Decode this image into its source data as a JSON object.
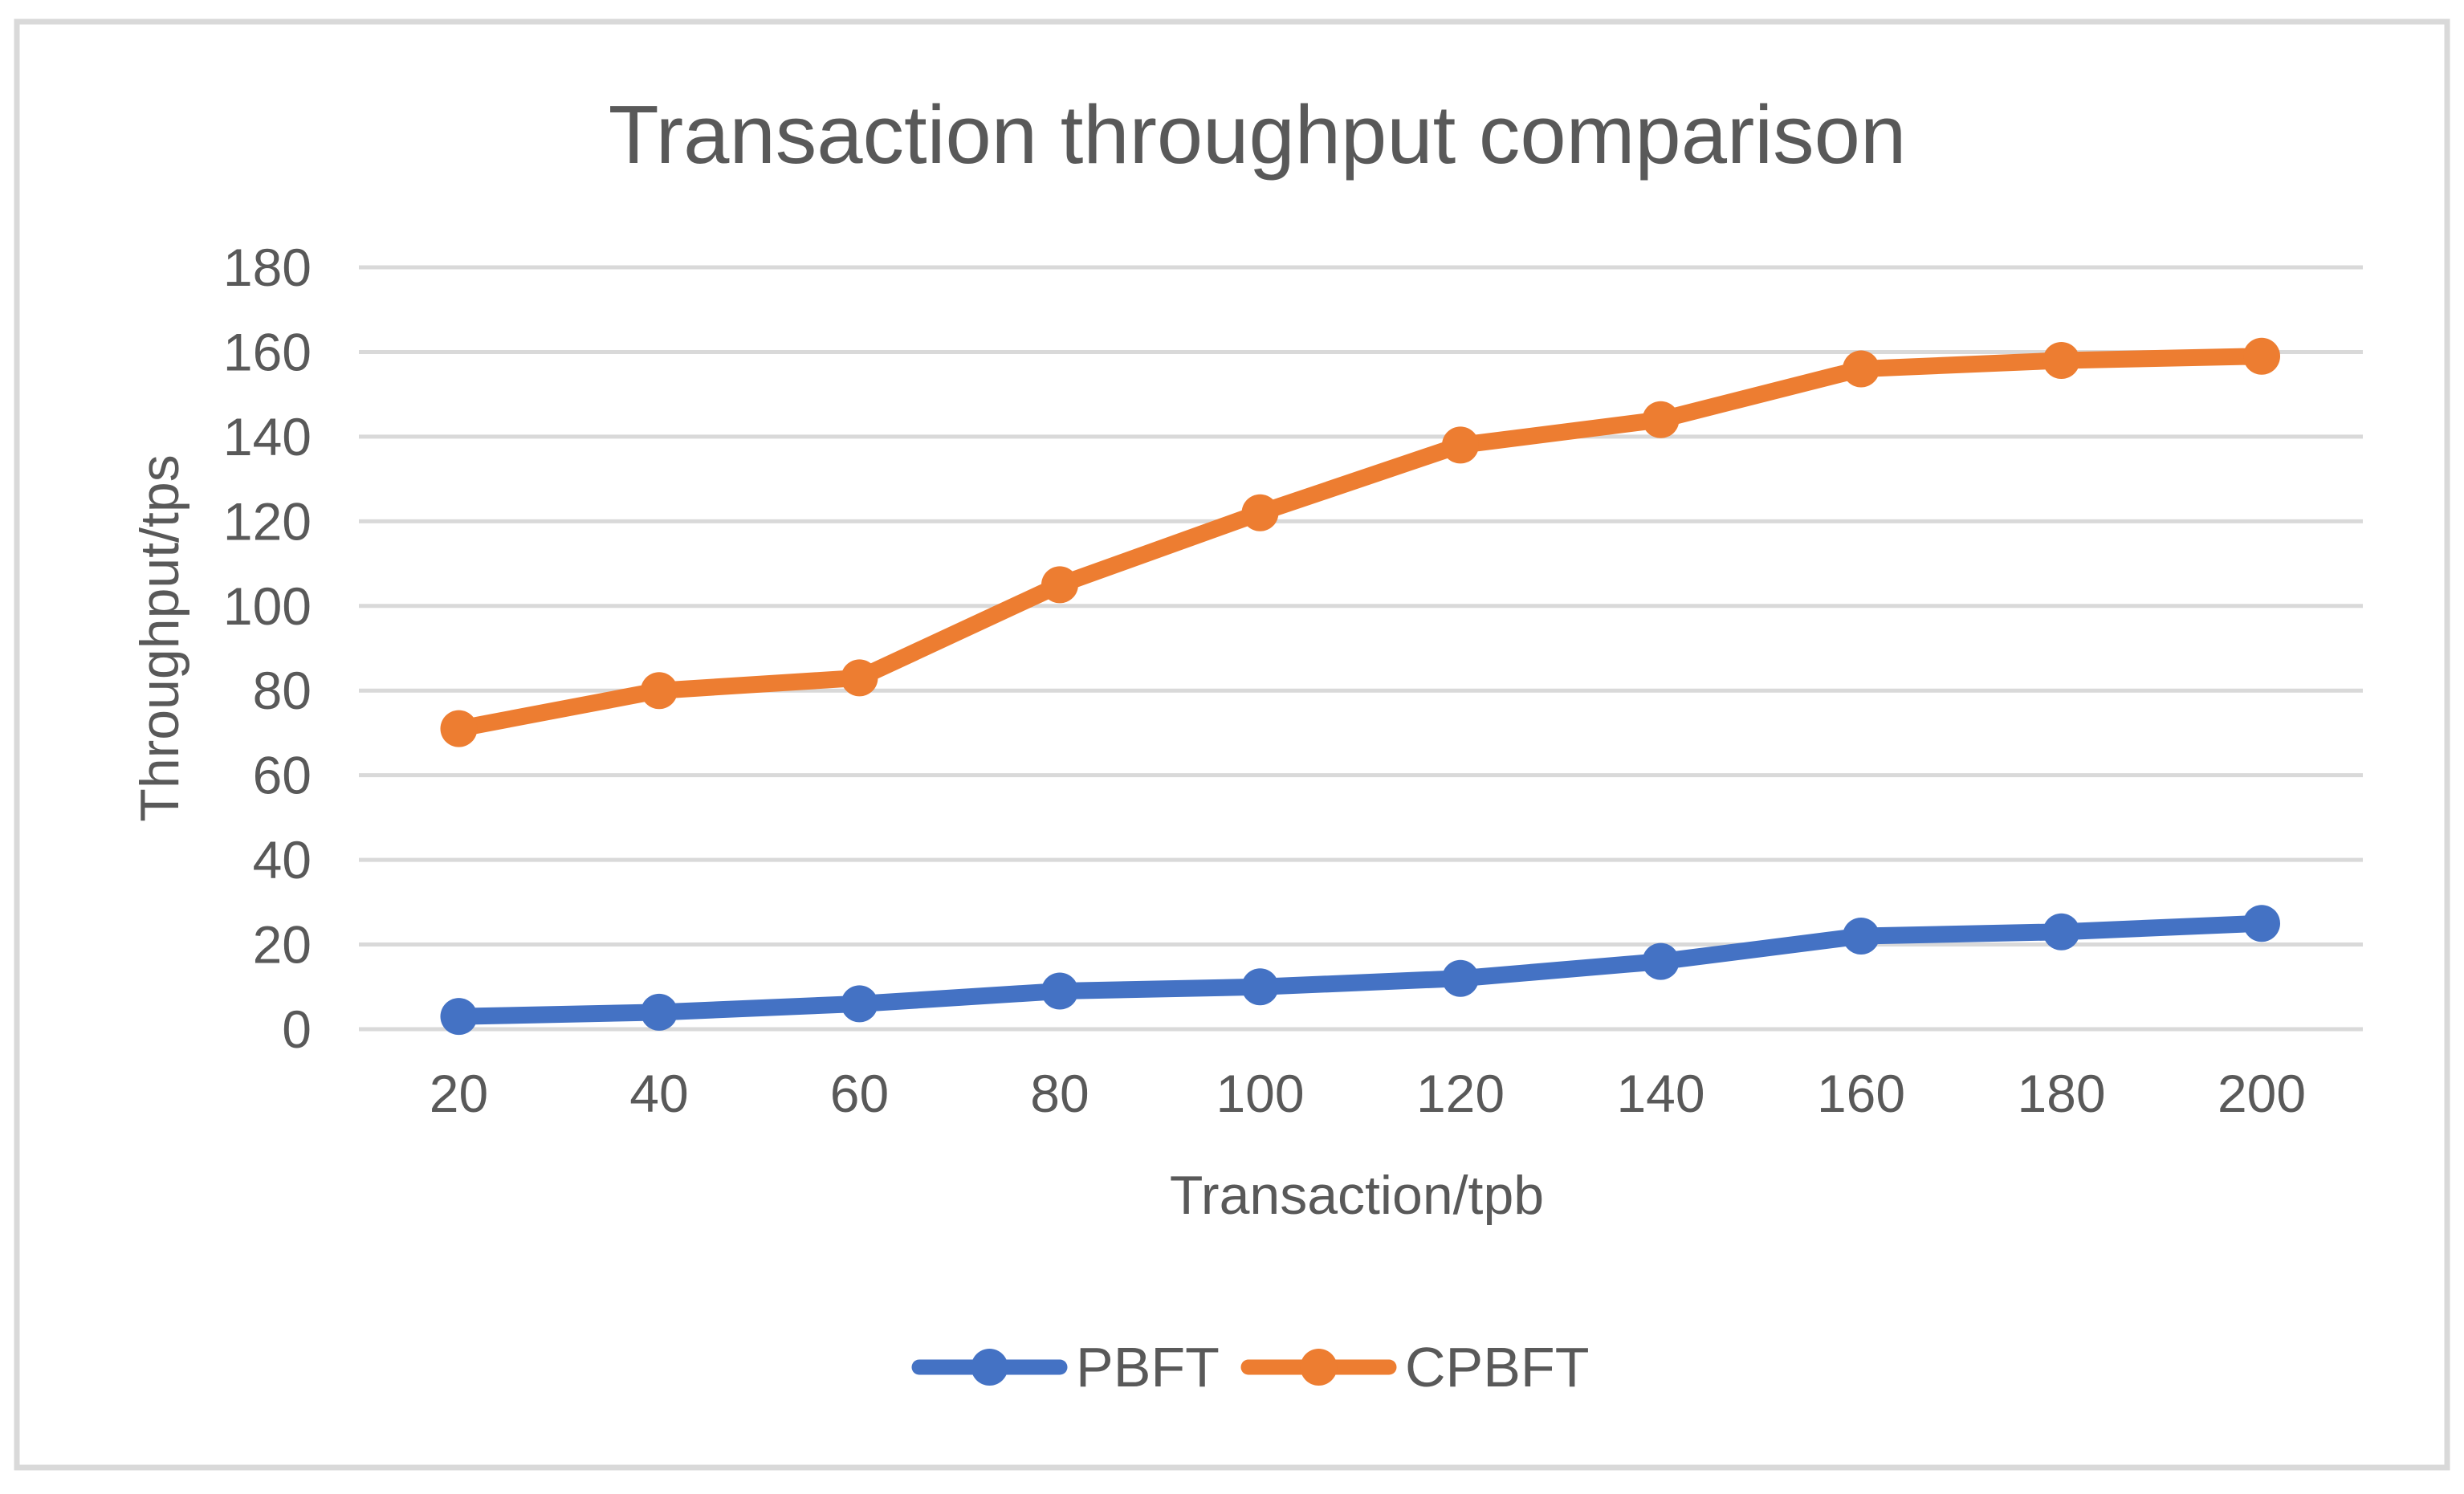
{
  "chart_data": {
    "type": "line",
    "title": "Transaction throughput comparison",
    "xlabel": "Transaction/tpb",
    "ylabel": "Throughput/tps",
    "categories": [
      20,
      40,
      60,
      80,
      100,
      120,
      140,
      160,
      180,
      200
    ],
    "series": [
      {
        "name": "PBFT",
        "color": "#4472C4",
        "values": [
          3,
          4,
          6,
          9,
          10,
          12,
          16,
          22,
          23,
          25
        ]
      },
      {
        "name": "CPBFT",
        "color": "#ED7D31",
        "values": [
          71,
          80,
          83,
          105,
          122,
          138,
          144,
          156,
          158,
          159
        ]
      }
    ],
    "y_axis": {
      "min": 0,
      "max": 180,
      "step": 20
    },
    "grid": "horizontal-only",
    "legend_position": "bottom-center",
    "colors": {
      "text": "#595959",
      "gridline": "#D9D9D9",
      "figure_border": "#D9D9D9",
      "background": "#FFFFFF"
    }
  }
}
